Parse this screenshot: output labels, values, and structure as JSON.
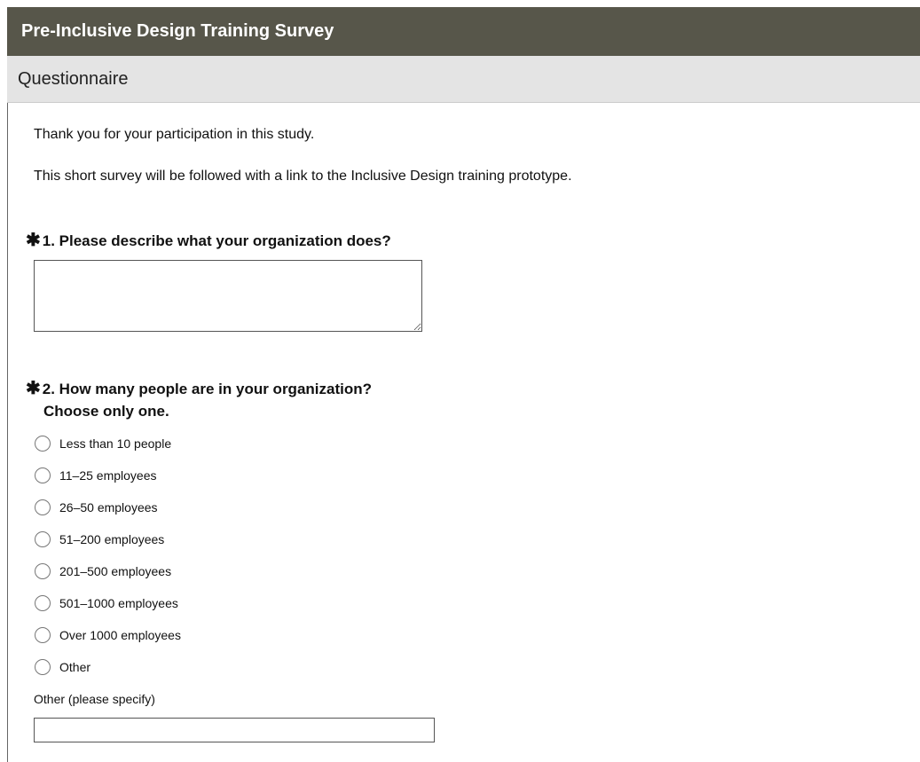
{
  "header": {
    "title": "Pre-Inclusive Design Training Survey"
  },
  "section": {
    "title": "Questionnaire"
  },
  "intro": [
    "Thank you for your participation in this study.",
    "This short survey will be followed with a link to the Inclusive Design training prototype."
  ],
  "questions": [
    {
      "label": "1. Please describe what your organization does?"
    },
    {
      "label": "2. How many people are in your organization?",
      "instruction": "Choose only one.",
      "options": [
        "Less than 10 people",
        "11–25 employees",
        "26–50 employees",
        "51–200 employees",
        "201–500 employees",
        "501–1000 employees",
        "Over 1000 employees",
        "Other"
      ],
      "other_label": "Other (please specify)"
    }
  ]
}
